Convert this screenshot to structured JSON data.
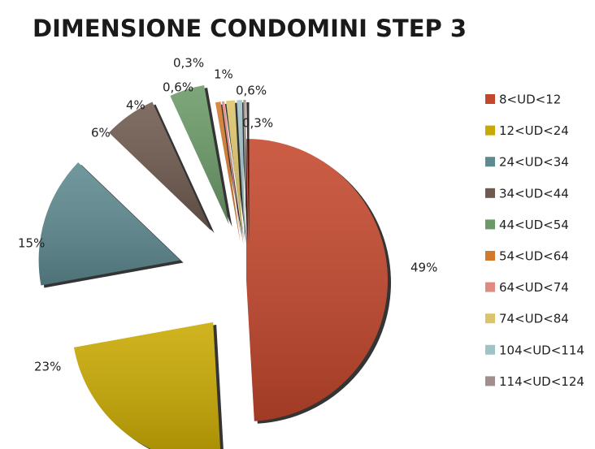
{
  "chart_data": {
    "type": "pie",
    "title": "DIMENSIONE CONDOMINI STEP 3",
    "categories": [
      "8<UD<12",
      "12<UD<24",
      "24<UD<34",
      "34<UD<44",
      "44<UD<54",
      "54<UD<64",
      "64<UD<74",
      "74<UD<84",
      "104<UD<114",
      "114<UD<124"
    ],
    "values": [
      49,
      23,
      15,
      6,
      4,
      0.6,
      0.3,
      1,
      0.6,
      0.3
    ],
    "value_labels": [
      "49%",
      "23%",
      "15%",
      "6%",
      "4%",
      "0,6%",
      "0,3%",
      "1%",
      "0,6%",
      "0,3%"
    ],
    "colors": [
      "#c4472c",
      "#c9a900",
      "#5e8a91",
      "#6f5a4f",
      "#6b9a68",
      "#d27a2c",
      "#e08b82",
      "#dcc46c",
      "#9fc3c7",
      "#a08f8c"
    ],
    "legend": "right"
  }
}
